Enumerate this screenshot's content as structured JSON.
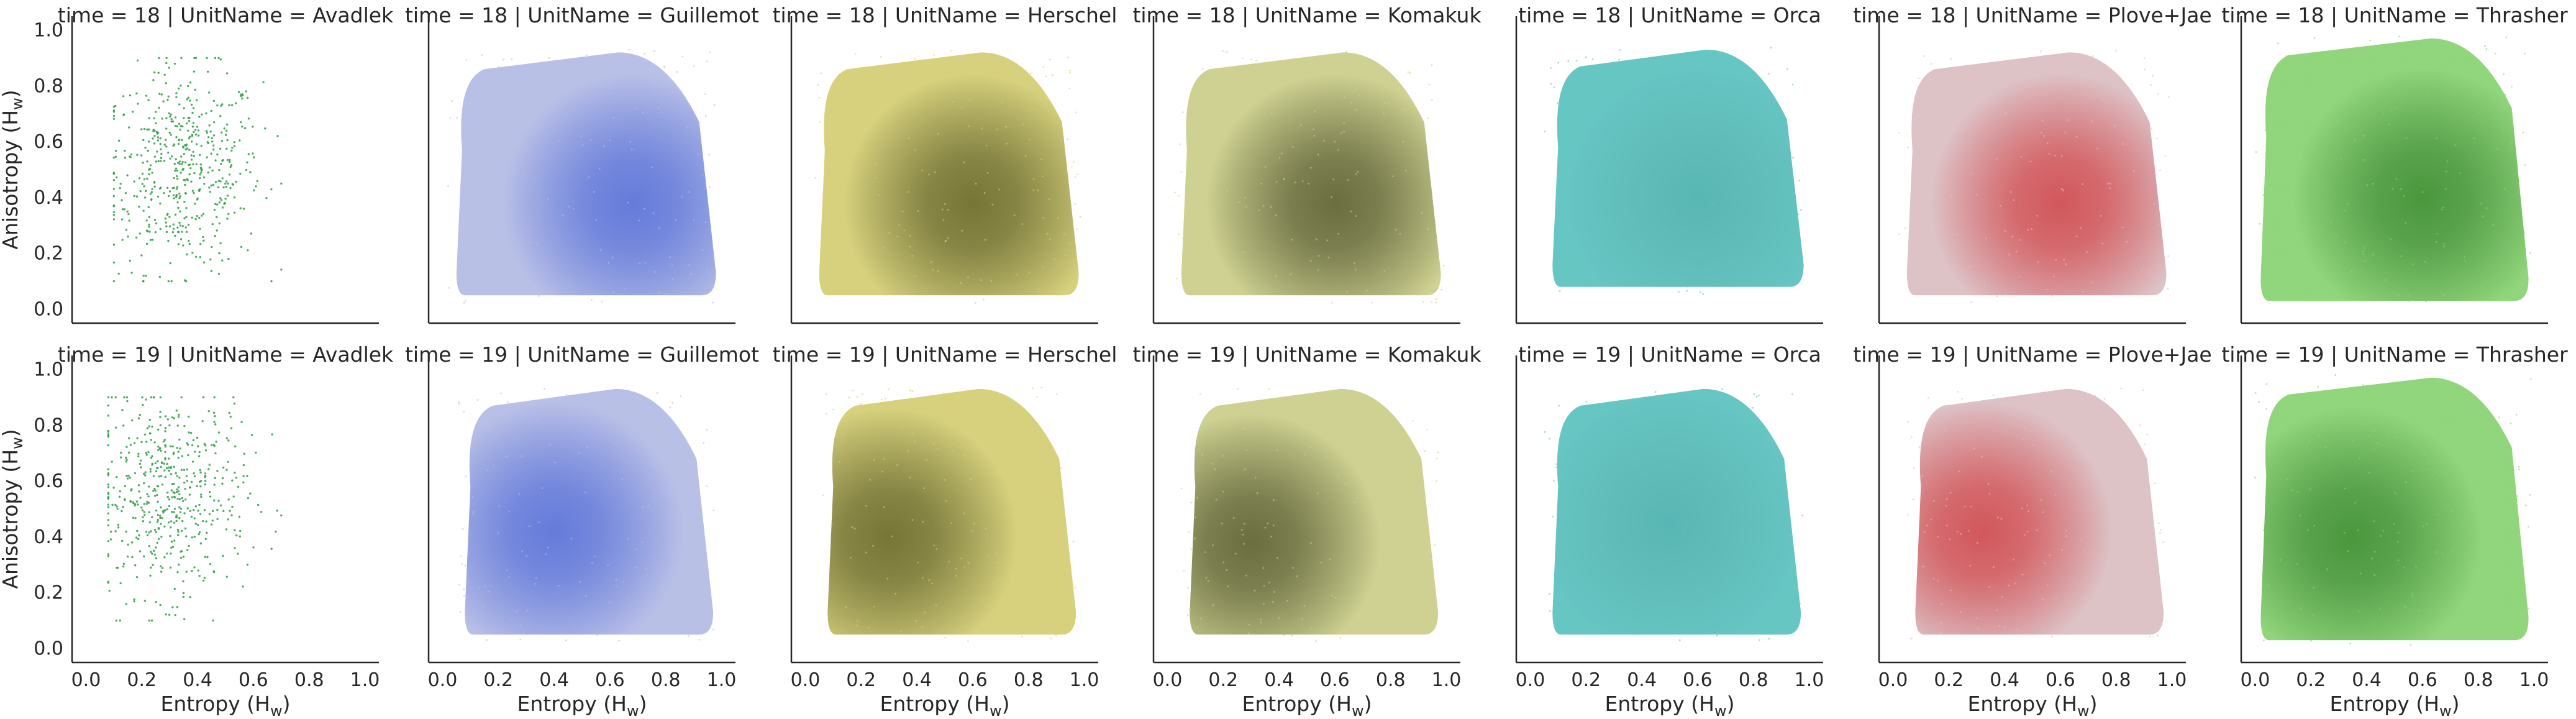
{
  "chart_data": {
    "type": "scatter",
    "layout": "facet-grid",
    "row_variable": "time",
    "col_variable": "UnitName",
    "rows": [
      18,
      19
    ],
    "columns": [
      "Avadlek",
      "Guillemot",
      "Herschel",
      "Komakuk",
      "Orca",
      "Plove+Jae",
      "Thrasher"
    ],
    "xlabel": "Entropy (Hw)",
    "xlabel_base": "Entropy (H",
    "xlabel_sub": "w",
    "xlabel_tail": ")",
    "ylabel": "Anisotropy (Hw)",
    "ylabel_base": "Anisotropy (H",
    "ylabel_sub": "w",
    "ylabel_tail": ")",
    "xlim": [
      -0.05,
      1.05
    ],
    "ylim": [
      -0.05,
      1.05
    ],
    "xticks": [
      "0.0",
      "0.2",
      "0.4",
      "0.6",
      "0.8",
      "1.0"
    ],
    "yticks": [
      "0.0",
      "0.2",
      "0.4",
      "0.6",
      "0.8",
      "1.0"
    ],
    "grid": false,
    "legend": "none",
    "unit_colors": {
      "Avadlek": {
        "light": "#2e9e44",
        "dark": "#1f7a33"
      },
      "Guillemot": {
        "light": "#b7bee6",
        "dark": "#5a72d8"
      },
      "Herschel": {
        "light": "#d6d07a",
        "dark": "#6b6a2a"
      },
      "Komakuk": {
        "light": "#cdd08e",
        "dark": "#5e6233"
      },
      "Orca": {
        "light": "#62c4c1",
        "dark": "#52b3b0"
      },
      "Plove+Jae": {
        "light": "#dcc0c4",
        "dark": "#cf4a4e"
      },
      "Thrasher": {
        "light": "#8ed478",
        "dark": "#3f8f33"
      }
    },
    "panels": [
      {
        "time": 18,
        "unit": "Avadlek",
        "title": "time = 18 | UnitName = Avadlek",
        "style": "sparse",
        "x_range": [
          0.1,
          0.7
        ],
        "y_range": [
          0.1,
          0.9
        ],
        "center": [
          0.35,
          0.5
        ]
      },
      {
        "time": 18,
        "unit": "Guillemot",
        "title": "time = 18 | UnitName = Guillemot",
        "style": "dense",
        "x_range": [
          0.05,
          0.98
        ],
        "y_range": [
          0.05,
          0.92
        ],
        "center": [
          0.68,
          0.38
        ]
      },
      {
        "time": 18,
        "unit": "Herschel",
        "title": "time = 18 | UnitName = Herschel",
        "style": "dense",
        "x_range": [
          0.05,
          0.98
        ],
        "y_range": [
          0.05,
          0.92
        ],
        "center": [
          0.6,
          0.38
        ]
      },
      {
        "time": 18,
        "unit": "Komakuk",
        "title": "time = 18 | UnitName = Komakuk",
        "style": "dense",
        "x_range": [
          0.05,
          0.98
        ],
        "y_range": [
          0.05,
          0.92
        ],
        "center": [
          0.6,
          0.38
        ]
      },
      {
        "time": 18,
        "unit": "Orca",
        "title": "time = 18 | UnitName = Orca",
        "style": "dense",
        "x_range": [
          0.08,
          0.98
        ],
        "y_range": [
          0.08,
          0.93
        ],
        "center": [
          0.6,
          0.4
        ]
      },
      {
        "time": 18,
        "unit": "Plove+Jae",
        "title": "time = 18 | UnitName = Plove+Jae",
        "style": "dense",
        "x_range": [
          0.05,
          0.98
        ],
        "y_range": [
          0.05,
          0.92
        ],
        "center": [
          0.6,
          0.38
        ]
      },
      {
        "time": 18,
        "unit": "Thrasher",
        "title": "time = 18 | UnitName = Thrasher",
        "style": "dense",
        "x_range": [
          0.02,
          0.98
        ],
        "y_range": [
          0.03,
          0.97
        ],
        "center": [
          0.6,
          0.4
        ]
      },
      {
        "time": 19,
        "unit": "Avadlek",
        "title": "time = 19 | UnitName = Avadlek",
        "style": "sparse",
        "x_range": [
          0.08,
          0.7
        ],
        "y_range": [
          0.1,
          0.9
        ],
        "center": [
          0.3,
          0.55
        ]
      },
      {
        "time": 19,
        "unit": "Guillemot",
        "title": "time = 19 | UnitName = Guillemot",
        "style": "dense",
        "x_range": [
          0.08,
          0.97
        ],
        "y_range": [
          0.05,
          0.93
        ],
        "center": [
          0.4,
          0.42
        ]
      },
      {
        "time": 19,
        "unit": "Herschel",
        "title": "time = 19 | UnitName = Herschel",
        "style": "dense",
        "x_range": [
          0.08,
          0.97
        ],
        "y_range": [
          0.05,
          0.93
        ],
        "center": [
          0.3,
          0.4
        ]
      },
      {
        "time": 19,
        "unit": "Komakuk",
        "title": "time = 19 | UnitName = Komakuk",
        "style": "dense",
        "x_range": [
          0.08,
          0.97
        ],
        "y_range": [
          0.05,
          0.93
        ],
        "center": [
          0.3,
          0.38
        ]
      },
      {
        "time": 19,
        "unit": "Orca",
        "title": "time = 19 | UnitName = Orca",
        "style": "dense",
        "x_range": [
          0.08,
          0.97
        ],
        "y_range": [
          0.05,
          0.93
        ],
        "center": [
          0.5,
          0.45
        ]
      },
      {
        "time": 19,
        "unit": "Plove+Jae",
        "title": "time = 19 | UnitName = Plove+Jae",
        "style": "dense",
        "x_range": [
          0.08,
          0.97
        ],
        "y_range": [
          0.05,
          0.93
        ],
        "center": [
          0.32,
          0.42
        ]
      },
      {
        "time": 19,
        "unit": "Thrasher",
        "title": "time = 19 | UnitName = Thrasher",
        "style": "dense",
        "x_range": [
          0.02,
          0.98
        ],
        "y_range": [
          0.03,
          0.97
        ],
        "center": [
          0.35,
          0.4
        ]
      }
    ]
  }
}
